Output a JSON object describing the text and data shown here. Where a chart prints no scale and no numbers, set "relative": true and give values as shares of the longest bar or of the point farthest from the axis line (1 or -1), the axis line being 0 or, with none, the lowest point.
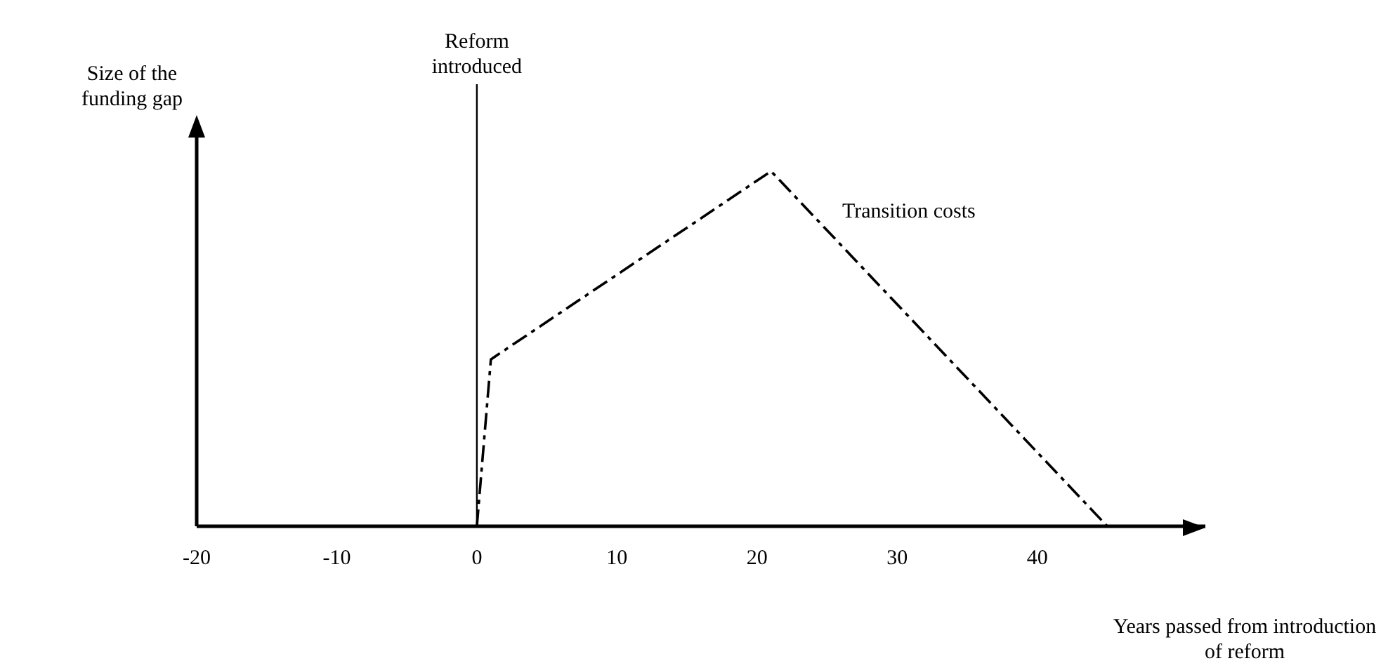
{
  "chart_data": {
    "type": "line",
    "relative": true,
    "x": [
      0,
      1,
      21,
      45
    ],
    "values": [
      0,
      0.47,
      1,
      0
    ],
    "color": "#000000",
    "line_style": "dashed",
    "marker": "none",
    "xlim": [
      -20,
      52
    ],
    "xticks": [
      -20,
      -10,
      0,
      10,
      20,
      30,
      40
    ],
    "xlabel": "Years passed from introduction of reform",
    "ylabel": "Size of the funding gap",
    "ref_lines": [
      {
        "axis": "x",
        "value": 0,
        "label": "Reform introduced",
        "color": "#000000"
      }
    ],
    "annotations": [
      "Transition costs"
    ],
    "grid": false,
    "legend": false
  }
}
